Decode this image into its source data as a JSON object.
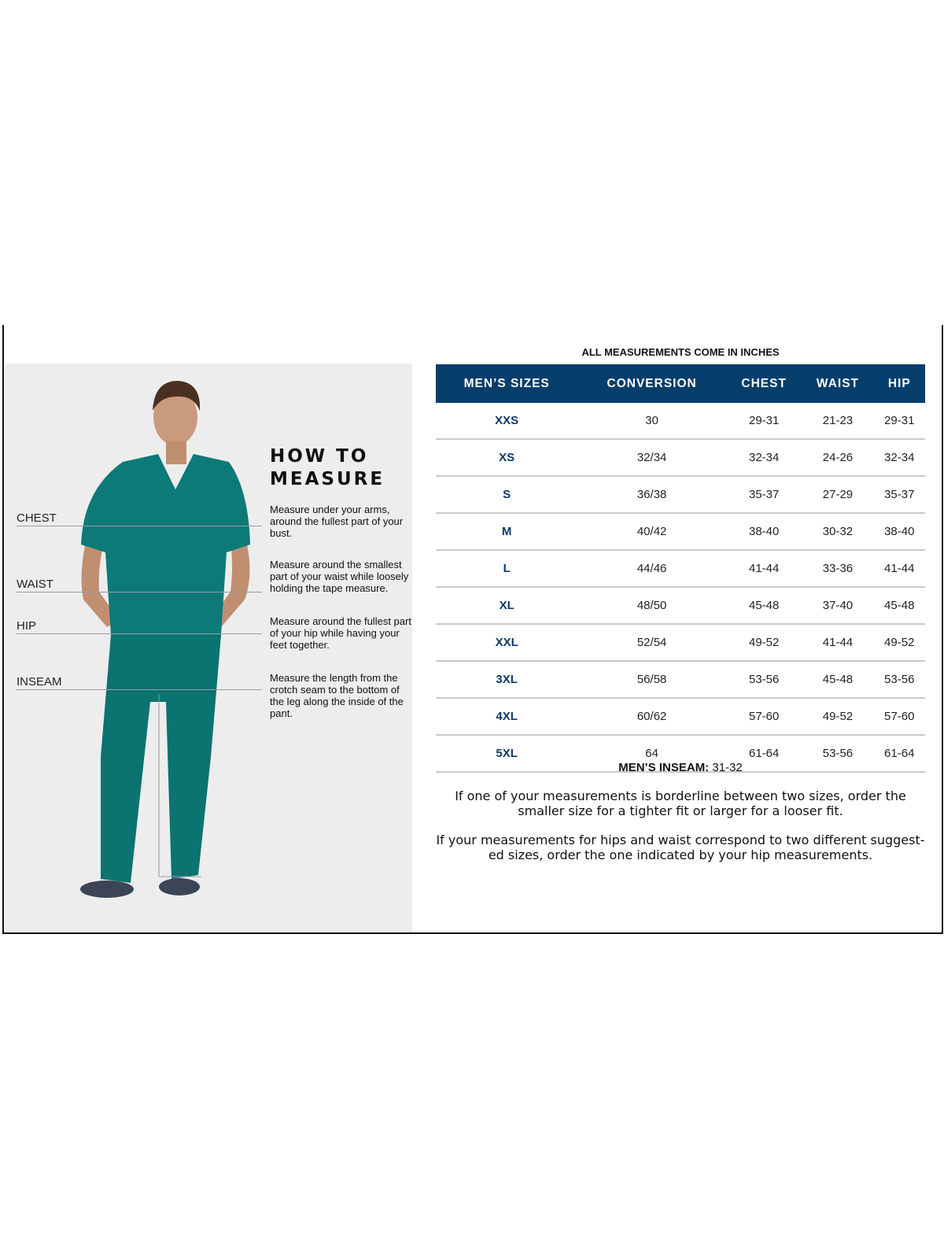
{
  "how_to_measure": {
    "title_line1": "HOW TO",
    "title_line2": "MEASURE",
    "measurements": [
      {
        "label": "CHEST",
        "description": "Measure under your arms, around the fullest part of your bust."
      },
      {
        "label": "WAIST",
        "description": "Measure around the smallest part of your waist while loosely holding the tape measure."
      },
      {
        "label": "HIP",
        "description": "Measure around the fullest part of your hip while having your feet together."
      },
      {
        "label": "INSEAM",
        "description": "Measure the length from the crotch seam to the bottom of the leg along the inside of the pant."
      }
    ]
  },
  "size_chart": {
    "units_note": "ALL MEASUREMENTS COME IN INCHES",
    "header_color": "#063e6b",
    "columns": [
      "MEN’S SIZES",
      "CONVERSION",
      "CHEST",
      "WAIST",
      "HIP"
    ],
    "rows": [
      [
        "XXS",
        "30",
        "29-31",
        "21-23",
        "29-31"
      ],
      [
        "XS",
        "32/34",
        "32-34",
        "24-26",
        "32-34"
      ],
      [
        "S",
        "36/38",
        "35-37",
        "27-29",
        "35-37"
      ],
      [
        "M",
        "40/42",
        "38-40",
        "30-32",
        "38-40"
      ],
      [
        "L",
        "44/46",
        "41-44",
        "33-36",
        "41-44"
      ],
      [
        "XL",
        "48/50",
        "45-48",
        "37-40",
        "45-48"
      ],
      [
        "XXL",
        "52/54",
        "49-52",
        "41-44",
        "49-52"
      ],
      [
        "3XL",
        "56/58",
        "53-56",
        "45-48",
        "53-56"
      ],
      [
        "4XL",
        "60/62",
        "57-60",
        "49-52",
        "57-60"
      ],
      [
        "5XL",
        "64",
        "61-64",
        "53-56",
        "61-64"
      ]
    ],
    "inseam_label": "MEN’S INSEAM:",
    "inseam_value": "31-32",
    "notes": [
      "If one of your measurements is borderline between two sizes, order the smaller size for a tighter fit or larger for a looser fit.",
      "If your measurements for hips and waist correspond to two different suggest-ed sizes, order the one indicated by your hip measurements."
    ]
  }
}
